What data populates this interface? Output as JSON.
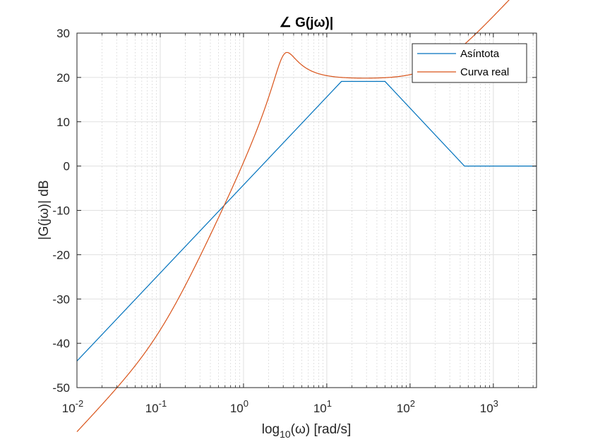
{
  "chart_data": {
    "type": "line",
    "title": "∠ G(jω)|",
    "xlabel": "log10(ω) [rad/s]",
    "ylabel": "|G(jω)| dB",
    "xscale": "log",
    "xlim": [
      0.01,
      3300
    ],
    "ylim": [
      -50,
      30
    ],
    "x_ticks": [
      {
        "value": 0.01,
        "base": "10",
        "exp": "-2"
      },
      {
        "value": 0.1,
        "base": "10",
        "exp": "-1"
      },
      {
        "value": 1,
        "base": "10",
        "exp": "0"
      },
      {
        "value": 10,
        "base": "10",
        "exp": "1"
      },
      {
        "value": 100,
        "base": "10",
        "exp": "2"
      },
      {
        "value": 1000,
        "base": "10",
        "exp": "3"
      }
    ],
    "y_ticks": [
      "30",
      "20",
      "10",
      "0",
      "-10",
      "-20",
      "-30",
      "-40",
      "-50"
    ],
    "grid": true,
    "legend_position": "top-right",
    "series": [
      {
        "name": "Asíntota",
        "color": "#0072BD",
        "points": [
          [
            0.01,
            -44
          ],
          [
            15,
            19.1
          ],
          [
            50,
            19.1
          ],
          [
            450,
            0
          ],
          [
            3300,
            0
          ]
        ]
      },
      {
        "name": "Curva real",
        "color": "#D95319",
        "model": {
          "k": 0.1,
          "z1": 0.1,
          "z2": 200,
          "p1": 3.1,
          "p2": 3.1,
          "zeta": 0.26
        }
      }
    ]
  }
}
